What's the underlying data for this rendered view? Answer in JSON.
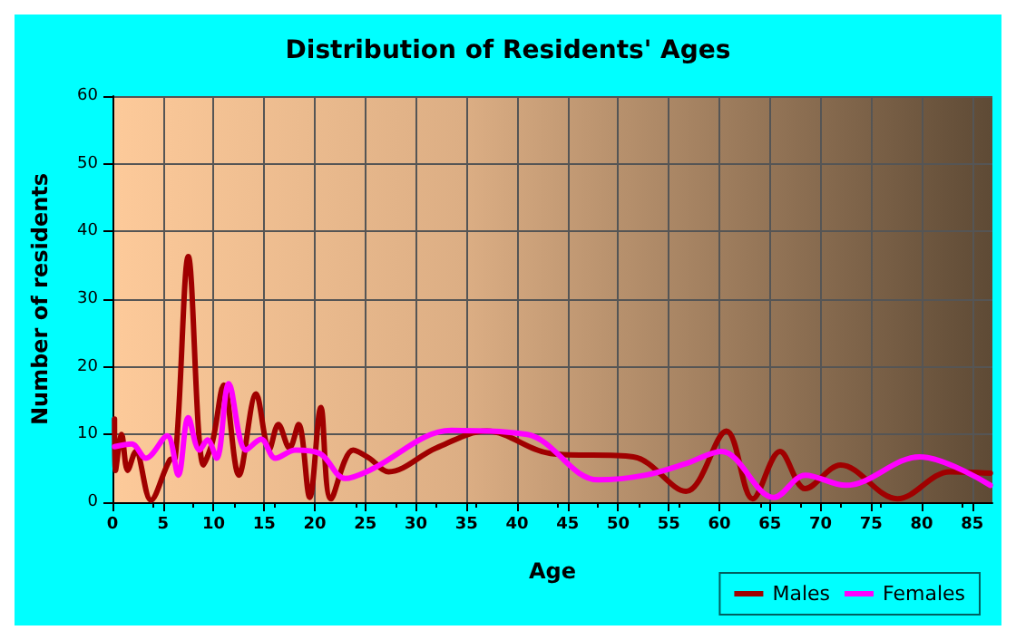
{
  "chart_data": {
    "type": "line",
    "title": "Distribution of Residents' Ages",
    "xlabel": "Age",
    "ylabel": "Number of residents",
    "xlim": [
      0,
      87
    ],
    "xticks": [
      0,
      5,
      10,
      15,
      20,
      25,
      30,
      35,
      40,
      45,
      50,
      55,
      60,
      65,
      70,
      75,
      80,
      85
    ],
    "ylim": [
      0,
      60
    ],
    "yticks": [
      0,
      10,
      20,
      30,
      40,
      50,
      60
    ],
    "grid": true,
    "legend": "bottom right",
    "marker": "none",
    "line_style": "solid",
    "series": [
      {
        "name": "Males",
        "color": "#a00000",
        "x": [
          0.2,
          0.3,
          0.9,
          1.5,
          2.3,
          3.8,
          5.7,
          6.2,
          7.5,
          9,
          9.9,
          11,
          12.5,
          14.2,
          15.5,
          16.4,
          17.5,
          18.4,
          19.5,
          20.6,
          21.6,
          23.8,
          25.4,
          27.3,
          32,
          37,
          43.3,
          51.5,
          56.7,
          60.7,
          63.3,
          66,
          68.5,
          72,
          77.6,
          82.8,
          86.8
        ],
        "values": [
          12.3,
          4.7,
          10,
          4.7,
          7.5,
          0.3,
          6.3,
          6.5,
          36.3,
          5.5,
          9,
          17.3,
          4,
          16,
          7.8,
          11.5,
          8,
          11.5,
          0.7,
          14,
          0.5,
          7.7,
          6.5,
          4.5,
          8,
          10.5,
          7.2,
          6.7,
          1.6,
          10.5,
          0.5,
          7.5,
          2,
          5.5,
          0.5,
          4.5,
          4.3
        ]
      },
      {
        "name": "Females",
        "color": "#ff00ff",
        "x": [
          0.2,
          1.9,
          3.3,
          5.4,
          6.5,
          7.5,
          8.6,
          9.4,
          10.3,
          11.5,
          13.2,
          14.7,
          16.1,
          18.1,
          20.5,
          23,
          25.4,
          33.5,
          41,
          48,
          52.7,
          56.7,
          60.2,
          65.4,
          68.5,
          72.5,
          79.8,
          86.8
        ],
        "values": [
          8.2,
          8.6,
          6.5,
          9.8,
          4,
          12.5,
          7.7,
          9.2,
          6.5,
          17.5,
          7.7,
          9.3,
          6.5,
          7.7,
          7.2,
          3.5,
          4.7,
          10.6,
          10,
          3.3,
          4,
          5.7,
          7.5,
          0.7,
          4,
          2.5,
          6.7,
          2.5
        ]
      }
    ]
  }
}
